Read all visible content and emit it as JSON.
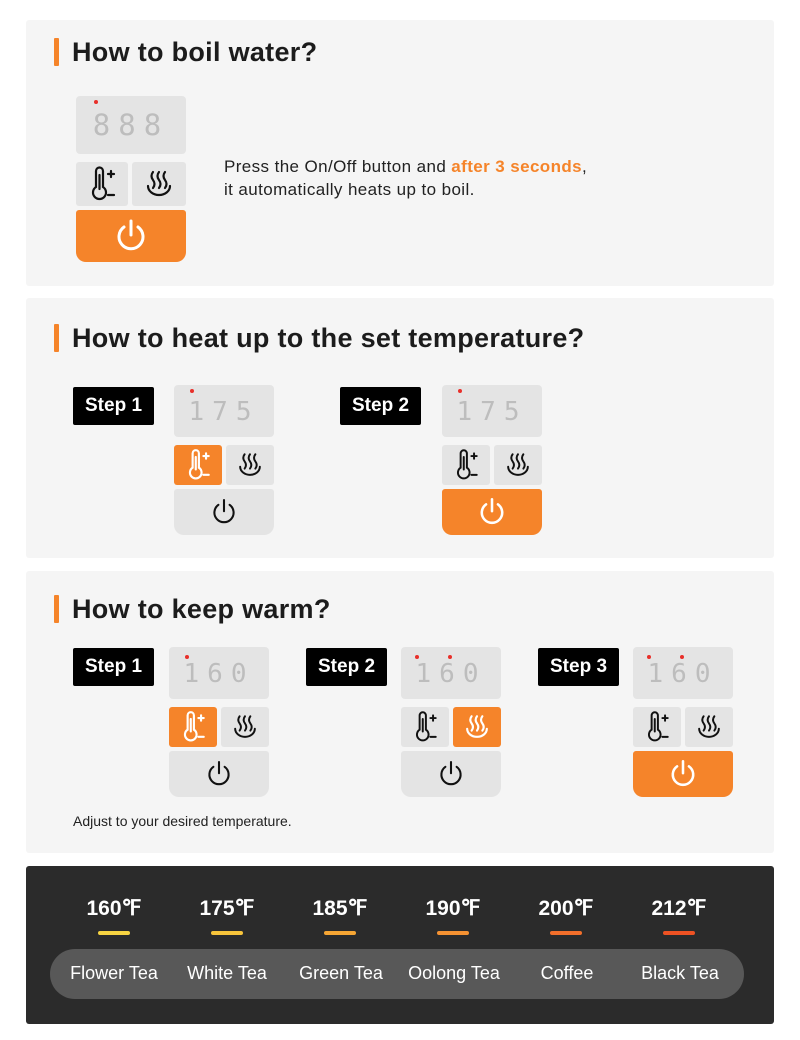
{
  "section1": {
    "title": "How to boil water?",
    "display": "888",
    "desc_line1": "Press the On/Off button and ",
    "desc_highlight": "after 3 seconds",
    "desc_comma": ",",
    "desc_line2": "it automatically heats up to boil."
  },
  "section2": {
    "title": "How to heat up to the set temperature?",
    "steps": [
      {
        "label": "Step 1",
        "display": "175",
        "active": "temp"
      },
      {
        "label": "Step 2",
        "display": "175",
        "active": "power"
      }
    ]
  },
  "section3": {
    "title": "How to keep warm?",
    "steps": [
      {
        "label": "Step 1",
        "display": "160",
        "active": "temp"
      },
      {
        "label": "Step 2",
        "display": "160",
        "active": "warm"
      },
      {
        "label": "Step 3",
        "display": "160",
        "active": "power"
      }
    ],
    "note": "Adjust to your desired temperature."
  },
  "temps": [
    {
      "temp": "160℉",
      "name": "Flower Tea",
      "color": "#f7d442"
    },
    {
      "temp": "175℉",
      "name": "White Tea",
      "color": "#f7c43b"
    },
    {
      "temp": "185℉",
      "name": "Green Tea",
      "color": "#f6a634"
    },
    {
      "temp": "190℉",
      "name": "Oolong Tea",
      "color": "#f59232"
    },
    {
      "temp": "200℉",
      "name": "Coffee",
      "color": "#f26f2b"
    },
    {
      "temp": "212℉",
      "name": "Black Tea",
      "color": "#ee5223"
    }
  ],
  "colors": {
    "accent": "#f5842a",
    "dark_bg": "#2b2b2b",
    "card_bg": "#f5f5f5",
    "button_bg": "#e4e4e4"
  },
  "icons": [
    "thermometer-plus-minus-icon",
    "steam-keep-warm-icon",
    "power-icon"
  ]
}
